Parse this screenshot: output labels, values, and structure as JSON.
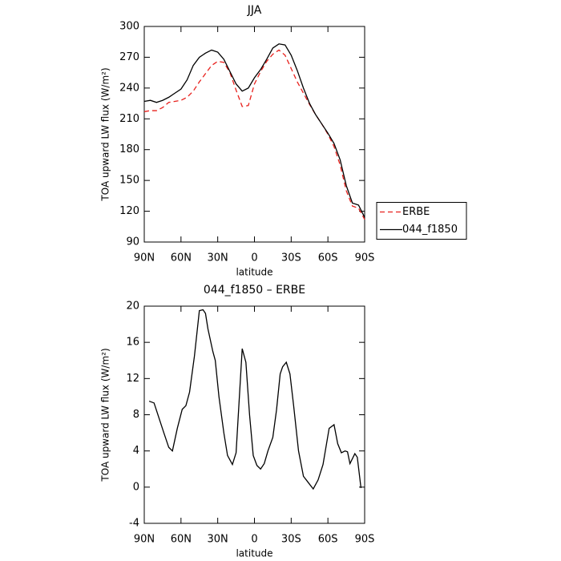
{
  "chart_data": [
    {
      "type": "line",
      "title": "JJA",
      "xlabel": "latitude",
      "ylabel": "TOA upward LW flux (W/m²)",
      "x": [
        90,
        85,
        80,
        75,
        70,
        65,
        60,
        55,
        50,
        45,
        40,
        35,
        30,
        25,
        20,
        15,
        10,
        5,
        0,
        -5,
        -10,
        -15,
        -20,
        -25,
        -30,
        -35,
        -40,
        -45,
        -50,
        -55,
        -60,
        -65,
        -70,
        -75,
        -80,
        -85,
        -90
      ],
      "series": [
        {
          "name": "ERBE",
          "color": "#e8201c",
          "dash": "6,4",
          "values": [
            217,
            218,
            218,
            221,
            226,
            227,
            228,
            231,
            237,
            246,
            254,
            262,
            266,
            265,
            255,
            238,
            222,
            223,
            244,
            256,
            266,
            273,
            277,
            272,
            259,
            246,
            235,
            224,
            214,
            205,
            195,
            183,
            165,
            140,
            125,
            123,
            112
          ]
        },
        {
          "name": "044_f1850",
          "color": "#000000",
          "dash": "none",
          "values": [
            227,
            228,
            226,
            228,
            231,
            235,
            239,
            248,
            262,
            270,
            274,
            277,
            275,
            268,
            256,
            244,
            237,
            240,
            250,
            258,
            268,
            279,
            283,
            282,
            272,
            257,
            240,
            225,
            214,
            205,
            196,
            186,
            170,
            145,
            128,
            126,
            114
          ]
        }
      ],
      "xlim": [
        90,
        -90
      ],
      "xticks": [
        {
          "value": 90,
          "label": "90N"
        },
        {
          "value": 60,
          "label": "60N"
        },
        {
          "value": 30,
          "label": "30N"
        },
        0,
        {
          "value": -30,
          "label": "30S"
        },
        {
          "value": -60,
          "label": "60S"
        },
        {
          "value": -90,
          "label": "90S"
        }
      ],
      "ylim": [
        90,
        300
      ],
      "yticks": [
        90,
        120,
        150,
        180,
        210,
        240,
        270,
        300
      ],
      "legend": "right"
    },
    {
      "type": "line",
      "title": "044_f1850 – ERBE",
      "xlabel": "latitude",
      "ylabel": "TOA upward LW flux (W/m²)",
      "x": [
        86,
        82,
        74,
        70,
        67,
        63,
        59,
        56,
        53,
        49,
        45,
        42,
        40,
        38,
        34,
        32,
        29,
        25,
        22,
        18,
        15,
        10,
        7,
        4,
        1,
        -2,
        -5,
        -8,
        -11,
        -15,
        -18,
        -21,
        -23,
        -26,
        -29,
        -32,
        -36,
        -40,
        -44,
        -48,
        -52,
        -56,
        -61,
        -65,
        -68,
        -71,
        -74,
        -76,
        -78,
        -82,
        -84,
        -87
      ],
      "series": [
        {
          "name": "044_f1850 – ERBE",
          "color": "#000000",
          "dash": "none",
          "values": [
            9.5,
            9.3,
            6,
            4.4,
            4,
            6.5,
            8.6,
            9,
            10.5,
            14.5,
            19.5,
            19.6,
            19.2,
            17.5,
            15,
            14,
            10,
            6,
            3.5,
            2.5,
            3.8,
            15.3,
            13.8,
            8,
            3.5,
            2.4,
            2,
            2.6,
            4,
            5.5,
            8.5,
            12.5,
            13.3,
            13.8,
            12.5,
            9,
            4,
            1.2,
            0.5,
            -0.2,
            0.8,
            2.5,
            6.5,
            6.9,
            4.8,
            3.8,
            4,
            3.9,
            2.6,
            3.7,
            3.3,
            -0.1
          ]
        }
      ],
      "xlim": [
        90,
        -90
      ],
      "xticks": [
        {
          "value": 90,
          "label": "90N"
        },
        {
          "value": 60,
          "label": "60N"
        },
        {
          "value": 30,
          "label": "30N"
        },
        0,
        {
          "value": -30,
          "label": "30S"
        },
        {
          "value": -60,
          "label": "60S"
        },
        {
          "value": -90,
          "label": "90S"
        }
      ],
      "ylim": [
        -4,
        20
      ],
      "yticks": [
        -4,
        0,
        4,
        8,
        12,
        16,
        20
      ]
    }
  ]
}
